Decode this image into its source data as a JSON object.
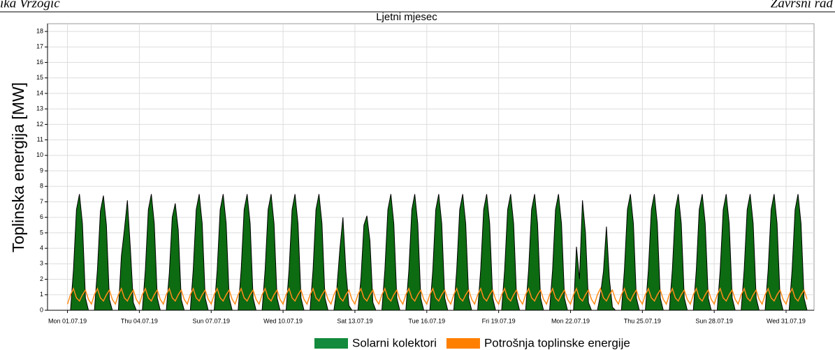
{
  "header": {
    "left": "ika Vrzogić",
    "right": "Završni rad"
  },
  "chart_data": {
    "type": "line",
    "title": "Ljetni mjesec",
    "ylabel": "Toplinska energija [MW]",
    "xlim": [
      -20,
      748
    ],
    "ylim": [
      0,
      18.5
    ],
    "yticks": [
      0,
      1,
      2,
      3,
      4,
      5,
      6,
      7,
      8,
      9,
      10,
      11,
      12,
      13,
      14,
      15,
      16,
      17,
      18
    ],
    "xticks": [
      {
        "value": 0,
        "label": "Mon 01.07.19"
      },
      {
        "value": 72,
        "label": "Thu 04.07.19"
      },
      {
        "value": 144,
        "label": "Sun 07.07.19"
      },
      {
        "value": 216,
        "label": "Wed 10.07.19"
      },
      {
        "value": 288,
        "label": "Sat 13.07.19"
      },
      {
        "value": 360,
        "label": "Tue 16.07.19"
      },
      {
        "value": 432,
        "label": "Fri 19.07.19"
      },
      {
        "value": 504,
        "label": "Mon 22.07.19"
      },
      {
        "value": 576,
        "label": "Thu 25.07.19"
      },
      {
        "value": 648,
        "label": "Sun 28.07.19"
      },
      {
        "value": 720,
        "label": "Wed 31.07.19"
      }
    ],
    "grid": true,
    "x": [
      0,
      3,
      6,
      9,
      12,
      15,
      18,
      21,
      24,
      27,
      30,
      33,
      36,
      39,
      42,
      45,
      48,
      51,
      54,
      57,
      60,
      63,
      66,
      69,
      72,
      75,
      78,
      81,
      84,
      87,
      90,
      93,
      96,
      99,
      102,
      105,
      108,
      111,
      114,
      117,
      120,
      123,
      126,
      129,
      132,
      135,
      138,
      141,
      144,
      147,
      150,
      153,
      156,
      159,
      162,
      165,
      168,
      171,
      174,
      177,
      180,
      183,
      186,
      189,
      192,
      195,
      198,
      201,
      204,
      207,
      210,
      213,
      216,
      219,
      222,
      225,
      228,
      231,
      234,
      237,
      240,
      243,
      246,
      249,
      252,
      255,
      258,
      261,
      264,
      267,
      270,
      273,
      276,
      279,
      282,
      285,
      288,
      291,
      294,
      297,
      300,
      303,
      306,
      309,
      312,
      315,
      318,
      321,
      324,
      327,
      330,
      333,
      336,
      339,
      342,
      345,
      348,
      351,
      354,
      357,
      360,
      363,
      366,
      369,
      372,
      375,
      378,
      381,
      384,
      387,
      390,
      393,
      396,
      399,
      402,
      405,
      408,
      411,
      414,
      417,
      420,
      423,
      426,
      429,
      432,
      435,
      438,
      441,
      444,
      447,
      450,
      453,
      456,
      459,
      462,
      465,
      468,
      471,
      474,
      477,
      480,
      483,
      486,
      489,
      492,
      495,
      498,
      501,
      504,
      507,
      510,
      513,
      516,
      519,
      522,
      525,
      528,
      531,
      534,
      537,
      540,
      543,
      546,
      549,
      552,
      555,
      558,
      561,
      564,
      567,
      570,
      573,
      576,
      579,
      582,
      585,
      588,
      591,
      594,
      597,
      600,
      603,
      606,
      609,
      612,
      615,
      618,
      621,
      624,
      627,
      630,
      633,
      636,
      639,
      642,
      645,
      648,
      651,
      654,
      657,
      660,
      663,
      666,
      669,
      672,
      675,
      678,
      681,
      684,
      687,
      690,
      693,
      696,
      699,
      702,
      705,
      708,
      711,
      714,
      717,
      720,
      723,
      726,
      729,
      732,
      735,
      738,
      741
    ],
    "series": [
      {
        "name": "Solarni kolektori",
        "color": "#0d6b12",
        "legend_color": "#138a3c",
        "area": true,
        "values": [
          0,
          0,
          2.6,
          6.5,
          7.5,
          5.6,
          0.8,
          0,
          0,
          0,
          2.6,
          6.4,
          7.4,
          5.5,
          0.7,
          0,
          0,
          0,
          3.5,
          5.2,
          7.1,
          4.0,
          0.5,
          0,
          0,
          0,
          2.6,
          6.5,
          7.5,
          5.6,
          0.8,
          0,
          0,
          0,
          2.4,
          6.0,
          6.9,
          5.2,
          0.7,
          0,
          0,
          0,
          2.6,
          6.5,
          7.5,
          5.6,
          0.8,
          0,
          0,
          0,
          2.6,
          6.5,
          7.5,
          5.6,
          0.8,
          0,
          0,
          0,
          2.6,
          6.5,
          7.5,
          5.6,
          0.8,
          0,
          0,
          0,
          2.6,
          6.5,
          7.5,
          5.6,
          0.8,
          0,
          0,
          0,
          2.6,
          6.5,
          7.5,
          5.6,
          0.8,
          0,
          0,
          0,
          2.6,
          6.5,
          7.5,
          5.6,
          0.8,
          0,
          0,
          0,
          1.5,
          4.0,
          6.0,
          2.5,
          0.3,
          0,
          0,
          0,
          2.0,
          5.5,
          6.1,
          4.5,
          0.5,
          0,
          0,
          0,
          2.6,
          6.5,
          7.5,
          5.6,
          0.8,
          0,
          0,
          0,
          2.6,
          6.5,
          7.5,
          5.6,
          0.8,
          0,
          0,
          0,
          2.6,
          6.5,
          7.5,
          5.6,
          0.8,
          0,
          0,
          0,
          2.6,
          6.5,
          7.5,
          5.6,
          0.8,
          0,
          0,
          0,
          2.6,
          6.5,
          7.5,
          5.6,
          0.8,
          0,
          0,
          0,
          2.6,
          6.5,
          7.5,
          5.6,
          0.8,
          0,
          0,
          0,
          2.6,
          6.5,
          7.5,
          5.6,
          0.8,
          0,
          0,
          0,
          2.6,
          6.5,
          7.5,
          5.6,
          0.8,
          0,
          0,
          0,
          4.1,
          2.0,
          7.1,
          5.0,
          0.5,
          0,
          0,
          0,
          1.0,
          2.5,
          5.4,
          2.0,
          0.2,
          0,
          0,
          0,
          2.6,
          6.5,
          7.5,
          5.6,
          0.8,
          0,
          0,
          0,
          2.6,
          6.5,
          7.5,
          5.6,
          0.8,
          0,
          0,
          0,
          2.6,
          6.5,
          7.5,
          5.6,
          0.8,
          0,
          0,
          0,
          2.6,
          6.5,
          7.5,
          5.6,
          0.8,
          0,
          0,
          0,
          2.6,
          6.5,
          7.5,
          5.6,
          0.8,
          0,
          0,
          0,
          2.6,
          6.5,
          7.5,
          5.6,
          0.8,
          0,
          0,
          0,
          2.6,
          6.5,
          7.5,
          5.6,
          0.8,
          0,
          0,
          0,
          2.6,
          6.5,
          7.5,
          5.6,
          0.8,
          0
        ]
      },
      {
        "name": "Potrošnja toplinske energije",
        "color": "#ff8c1a",
        "legend_color": "#ff8000",
        "area": false,
        "values": [
          0.4,
          1.0,
          1.4,
          0.8,
          0.6,
          1.0,
          1.3,
          0.7,
          0.4,
          1.0,
          1.4,
          0.8,
          0.6,
          1.0,
          1.3,
          0.7,
          0.4,
          1.0,
          1.4,
          0.8,
          0.6,
          1.0,
          1.3,
          0.7,
          0.4,
          1.0,
          1.4,
          0.8,
          0.6,
          1.0,
          1.3,
          0.7,
          0.4,
          1.0,
          1.4,
          0.8,
          0.6,
          1.0,
          1.3,
          0.7,
          0.4,
          1.0,
          1.4,
          0.8,
          0.6,
          1.0,
          1.3,
          0.7,
          0.4,
          1.0,
          1.4,
          0.8,
          0.6,
          1.0,
          1.3,
          0.7,
          0.4,
          1.0,
          1.4,
          0.8,
          0.6,
          1.0,
          1.3,
          0.7,
          0.4,
          1.0,
          1.4,
          0.8,
          0.6,
          1.0,
          1.3,
          0.7,
          0.4,
          1.0,
          1.4,
          0.8,
          0.6,
          1.0,
          1.3,
          0.7,
          0.4,
          1.0,
          1.4,
          0.8,
          0.6,
          1.0,
          1.3,
          0.7,
          0.4,
          1.0,
          1.4,
          0.8,
          0.6,
          1.0,
          1.3,
          0.7,
          0.4,
          1.0,
          1.4,
          0.8,
          0.6,
          1.0,
          1.3,
          0.7,
          0.4,
          1.0,
          1.4,
          0.8,
          0.6,
          1.0,
          1.3,
          0.7,
          0.4,
          1.0,
          1.4,
          0.8,
          0.6,
          1.0,
          1.3,
          0.7,
          0.4,
          1.0,
          1.4,
          0.8,
          0.6,
          1.0,
          1.3,
          0.7,
          0.4,
          1.0,
          1.4,
          0.8,
          0.6,
          1.0,
          1.3,
          0.7,
          0.4,
          1.0,
          1.4,
          0.8,
          0.6,
          1.0,
          1.3,
          0.7,
          0.4,
          1.0,
          1.4,
          0.8,
          0.6,
          1.0,
          1.3,
          0.7,
          0.4,
          1.0,
          1.4,
          0.8,
          0.6,
          1.0,
          1.3,
          0.7,
          0.4,
          1.0,
          1.4,
          0.8,
          0.6,
          1.0,
          1.3,
          0.7,
          0.4,
          1.0,
          1.4,
          0.8,
          0.6,
          1.0,
          1.3,
          0.7,
          0.4,
          1.0,
          1.4,
          0.8,
          0.6,
          1.0,
          1.3,
          0.7,
          0.4,
          1.0,
          1.4,
          0.8,
          0.6,
          1.0,
          1.3,
          0.7,
          0.4,
          1.0,
          1.4,
          0.8,
          0.6,
          1.0,
          1.3,
          0.7,
          0.4,
          1.0,
          1.4,
          0.8,
          0.6,
          1.0,
          1.3,
          0.7,
          0.4,
          1.0,
          1.4,
          0.8,
          0.6,
          1.0,
          1.3,
          0.7,
          0.4,
          1.0,
          1.4,
          0.8,
          0.6,
          1.0,
          1.3,
          0.7,
          0.4,
          1.0,
          1.4,
          0.8,
          0.6,
          1.0,
          1.3,
          0.7,
          0.4,
          1.0,
          1.4,
          0.8,
          0.6,
          1.0,
          1.3,
          0.7,
          0.4,
          1.0,
          1.4,
          0.8,
          0.6,
          1.0,
          1.3,
          0.7
        ]
      }
    ]
  }
}
